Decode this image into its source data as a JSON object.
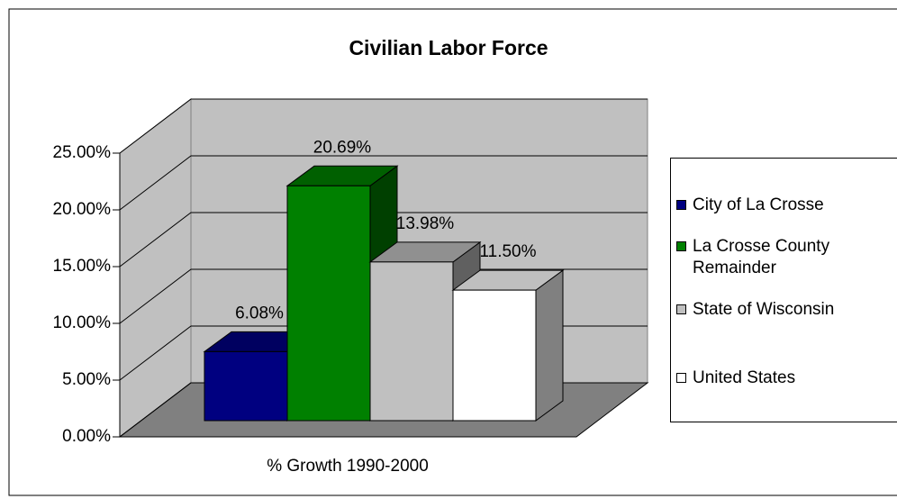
{
  "chart_data": {
    "type": "bar3d",
    "title": "Civilian Labor Force",
    "categories": [
      "% Growth 1990-2000"
    ],
    "series": [
      {
        "name": "City of La Crosse",
        "color": "#000080",
        "values": [
          6.08
        ],
        "value_labels": [
          "6.08%"
        ]
      },
      {
        "name": "La Crosse County Remainder",
        "color": "#008000",
        "values": [
          20.69
        ],
        "value_labels": [
          "20.69%"
        ]
      },
      {
        "name": "State of Wisconsin",
        "color": "#c0c0c0",
        "values": [
          13.98
        ],
        "value_labels": [
          "13.98%"
        ]
      },
      {
        "name": "United States",
        "color": "#ffffff",
        "values": [
          11.5
        ],
        "value_labels": [
          "11.50%"
        ]
      }
    ],
    "ylim": [
      0,
      25
    ],
    "yticks": [
      {
        "value": 0,
        "label": "0.00%"
      },
      {
        "value": 5,
        "label": "5.00%"
      },
      {
        "value": 10,
        "label": "10.00%"
      },
      {
        "value": 15,
        "label": "15.00%"
      },
      {
        "value": 20,
        "label": "20.00%"
      },
      {
        "value": 25,
        "label": "25.00%"
      }
    ],
    "grid": true,
    "legend": "right"
  }
}
